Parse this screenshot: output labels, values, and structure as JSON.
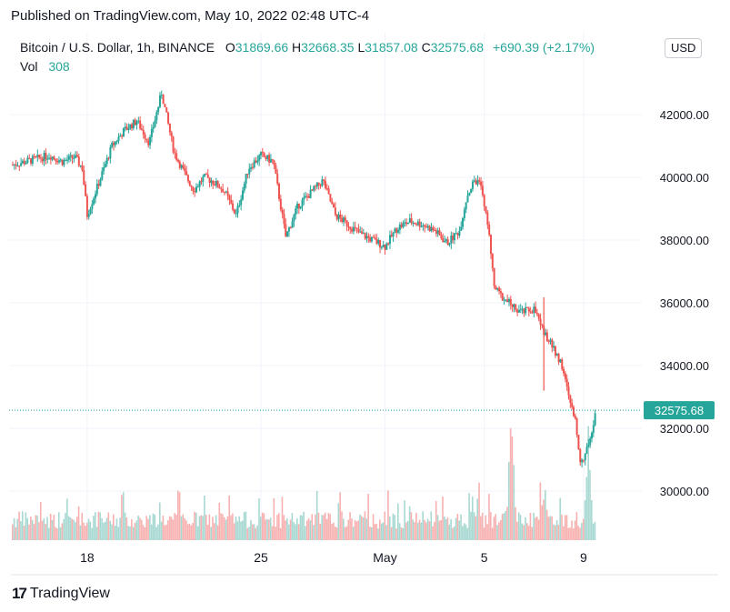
{
  "header": {
    "published": "Published on TradingView.com, May 10, 2022 02:48 UTC-4"
  },
  "legend": {
    "symbol": "Bitcoin / U.S. Dollar, 1h, BINANCE",
    "open_label": "O",
    "open": "31869.66",
    "high_label": "H",
    "high": "32668.35",
    "low_label": "L",
    "low": "31857.08",
    "close_label": "C",
    "close": "32575.68",
    "change": "+690.39 (+2.17%)",
    "vol_label": "Vol",
    "vol": "308"
  },
  "currency_button": "USD",
  "brand": {
    "logo": "17",
    "name": "TradingView"
  },
  "colors": {
    "up": "#26a69a",
    "down": "#ef5350",
    "up_vol": "#a7d8d2",
    "down_vol": "#f7b1b0",
    "grid": "#f0f3fa"
  },
  "chart_data": {
    "type": "candlestick",
    "interval": "1h",
    "title": "Bitcoin / U.S. Dollar, 1h, BINANCE",
    "y_tick_labels": [
      "30000.00",
      "32000.00",
      "34000.00",
      "36000.00",
      "38000.00",
      "40000.00",
      "42000.00"
    ],
    "y_ticks": [
      30000,
      32000,
      34000,
      36000,
      38000,
      40000,
      42000
    ],
    "ylim": [
      28450,
      44200
    ],
    "x_tick_labels": [
      "18",
      "25",
      "May",
      "5",
      "9"
    ],
    "x_ticks": [
      2.0,
      9.0,
      14.0,
      18.0,
      22.0
    ],
    "xlim": [
      -1.0,
      24.4
    ],
    "last_price": 32575.68,
    "last_price_label": "32575.68",
    "close_series": {
      "x": [
        -1.0,
        0.0,
        0.5,
        1.0,
        1.5,
        1.8,
        2.0,
        2.5,
        3.0,
        3.5,
        4.0,
        4.5,
        5.0,
        5.5,
        6.0,
        6.3,
        6.7,
        7.0,
        7.5,
        8.0,
        8.5,
        9.0,
        9.5,
        10.0,
        10.5,
        11.0,
        11.5,
        12.0,
        12.5,
        13.0,
        13.5,
        14.0,
        14.5,
        15.0,
        15.5,
        16.0,
        16.5,
        17.0,
        17.3,
        17.6,
        17.9,
        18.2,
        18.4,
        18.7,
        19.0,
        19.5,
        20.0,
        20.4,
        20.8,
        21.1,
        21.4,
        21.7,
        21.9,
        22.1,
        22.3,
        22.5
      ],
      "close": [
        40400,
        40600,
        40700,
        40500,
        40650,
        40300,
        38800,
        39900,
        41000,
        41500,
        41800,
        41100,
        42700,
        40800,
        40000,
        39600,
        40000,
        39900,
        39600,
        38800,
        40300,
        40700,
        40500,
        38100,
        39100,
        39500,
        39900,
        38800,
        38500,
        38200,
        38000,
        37800,
        38400,
        38600,
        38500,
        38300,
        37900,
        38300,
        39400,
        39900,
        39700,
        38100,
        36500,
        36200,
        36000,
        35700,
        35800,
        35100,
        34500,
        34100,
        33000,
        32100,
        30800,
        31200,
        31869.66,
        32575.68
      ]
    },
    "volume_series": {
      "note": "hourly volume bars, relative scale",
      "peaks": [
        {
          "x": 17.8,
          "v": 0.45
        },
        {
          "x": 19.1,
          "v": 0.95
        },
        {
          "x": 20.4,
          "v": 0.55
        },
        {
          "x": 22.2,
          "v": 0.85
        }
      ]
    }
  }
}
